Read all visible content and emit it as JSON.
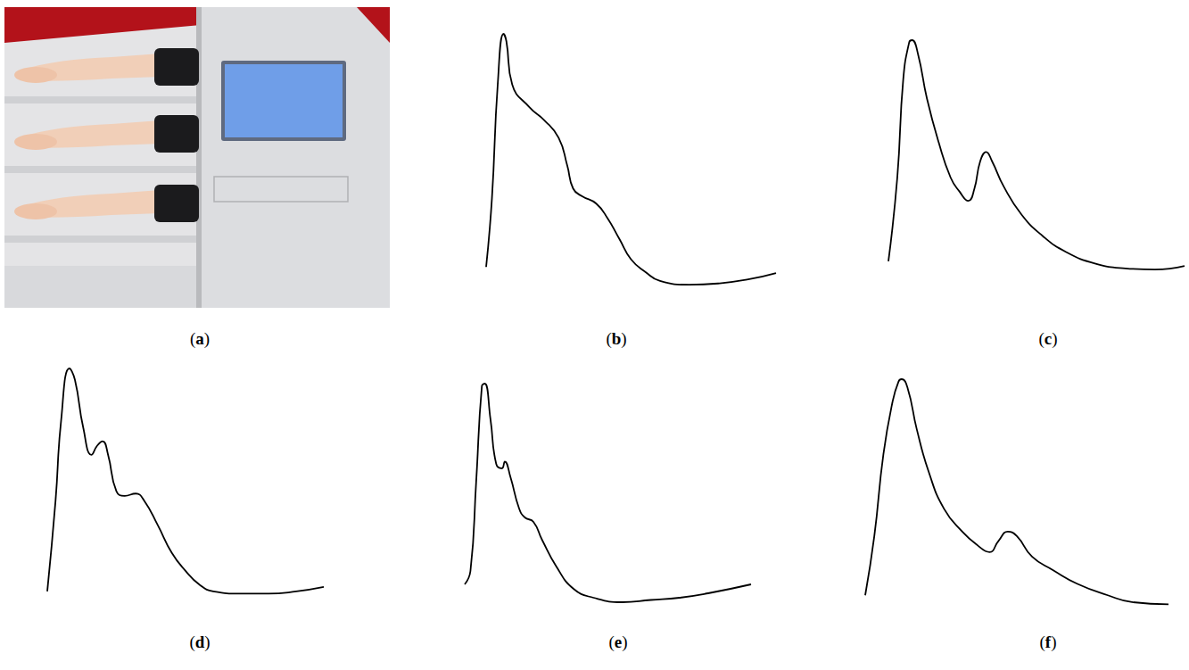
{
  "photo": {
    "label": "(a)"
  },
  "chart_data": [
    {
      "type": "line",
      "title": "(b)",
      "color": "#000000",
      "grid": false,
      "tick_labels": false,
      "xlim": [
        0,
        100
      ],
      "ylim": [
        0,
        100
      ],
      "x": [
        0,
        2,
        4,
        6,
        7,
        9,
        15,
        20,
        25,
        28,
        30,
        33,
        38,
        42,
        46,
        50,
        55,
        60,
        70,
        80,
        90,
        100
      ],
      "values": [
        8,
        35,
        80,
        100,
        97,
        80,
        71,
        66,
        59,
        48,
        39,
        36,
        33,
        27,
        19,
        11,
        6,
        2.5,
        1,
        1.5,
        3,
        5.6
      ]
    },
    {
      "type": "line",
      "title": "(c)",
      "color": "#000000",
      "grid": false,
      "tick_labels": false,
      "xlim": [
        0,
        100
      ],
      "ylim": [
        0,
        100
      ],
      "x": [
        0,
        3,
        5,
        7,
        8,
        10,
        13,
        17,
        21,
        24,
        27,
        29,
        31,
        33,
        35,
        39,
        45,
        52,
        60,
        70,
        80,
        90,
        100
      ],
      "values": [
        5,
        41,
        83,
        99,
        100,
        94,
        75,
        56,
        41,
        35,
        31,
        36,
        48,
        52,
        48,
        37,
        25,
        16,
        9,
        4,
        2,
        1.5,
        3
      ]
    },
    {
      "type": "line",
      "title": "(d)",
      "color": "#000000",
      "grid": false,
      "tick_labels": false,
      "xlim": [
        0,
        100
      ],
      "ylim": [
        0,
        100
      ],
      "x": [
        0,
        3,
        5,
        8,
        10,
        13,
        16,
        18,
        20,
        22,
        25,
        28,
        32,
        35,
        40,
        45,
        50,
        55,
        60,
        70,
        80,
        90,
        100
      ],
      "values": [
        2,
        42,
        77,
        100,
        95,
        74,
        62,
        66,
        68,
        62,
        46,
        44,
        45,
        42,
        31,
        19,
        11,
        5,
        2,
        1,
        1,
        2,
        4
      ]
    },
    {
      "type": "line",
      "title": "(e)",
      "color": "#000000",
      "grid": false,
      "tick_labels": false,
      "xlim": [
        0,
        100
      ],
      "ylim": [
        0,
        100
      ],
      "x": [
        0,
        2,
        4,
        6,
        7,
        9,
        11,
        13,
        14,
        16,
        19,
        21,
        24,
        27,
        32,
        38,
        45,
        55,
        65,
        75,
        85,
        100
      ],
      "values": [
        10,
        16,
        56,
        99,
        100,
        84,
        64,
        62,
        65,
        58,
        44,
        40,
        38,
        30,
        18,
        8,
        4,
        2,
        3,
        4,
        6,
        10
      ]
    },
    {
      "type": "line",
      "title": "(f)",
      "color": "#000000",
      "grid": false,
      "tick_labels": false,
      "xlim": [
        0,
        100
      ],
      "ylim": [
        0,
        100
      ],
      "x": [
        0,
        3,
        6,
        9,
        11,
        12,
        14,
        17,
        21,
        26,
        32,
        37,
        41,
        44,
        47,
        50,
        55,
        62,
        70,
        80,
        88,
        100
      ],
      "values": [
        5,
        31,
        67,
        90,
        99,
        100,
        96,
        78,
        59,
        43,
        33,
        27,
        24,
        29,
        33,
        31,
        22,
        16,
        10,
        5,
        2,
        1
      ]
    }
  ]
}
